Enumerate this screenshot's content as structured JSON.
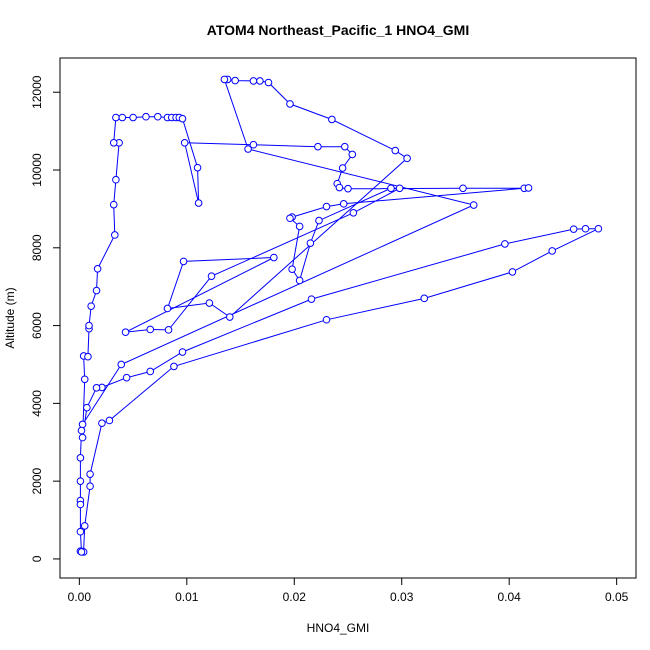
{
  "chart_data": {
    "type": "line",
    "title": "ATOM4 Northeast_Pacific_1 HNO4_GMI",
    "xlabel": "HNO4_GMI",
    "ylabel": "Altitude (m)",
    "xlim": [
      -0.0018,
      0.0518
    ],
    "ylim": [
      -490,
      12880
    ],
    "xticks": [
      {
        "value": 0,
        "label": "0.00"
      },
      0.01,
      0.02,
      0.03,
      0.04,
      0.05
    ],
    "yticks": [
      0,
      2000,
      4000,
      6000,
      8000,
      10000,
      12000
    ],
    "series": [
      {
        "color": "#0000ff",
        "x": [
          0.0003,
          0.0001,
          0.0004,
          0.0005,
          0.001,
          0.001,
          0.0021,
          0.0028,
          0.0088,
          0.023,
          0.0321,
          0.0403,
          0.044,
          0.0483,
          0.0471,
          0.046,
          0.0396,
          0.0216,
          0.0096,
          0.0066,
          0.0044,
          0.0021,
          0.0016,
          0.0007,
          0.0003,
          0.0005,
          0.0004,
          0.0008,
          0.0009,
          0.0009,
          0.0011,
          0.0016,
          0.0017,
          0.0033,
          0.0032,
          0.0034,
          0.0037,
          0.0032,
          0.0034,
          0.004,
          0.005,
          0.0062,
          0.0073,
          0.0082,
          0.0086,
          0.009,
          0.0093,
          0.0096,
          0.011,
          0.0111,
          0.0098,
          0.0162,
          0.0222,
          0.0247,
          0.0254,
          0.0245,
          0.024,
          0.0242,
          0.025,
          0.0357,
          0.0414,
          0.0418,
          0.0246,
          0.023,
          0.0198,
          0.0196,
          0.0205,
          0.0198,
          0.0205,
          0.0215,
          0.0223,
          0.029,
          0.0298,
          0.0255,
          0.0123,
          0.0083,
          0.0066,
          0.0043,
          0.0181,
          0.0097,
          0.0082,
          0.0121,
          0.014,
          0.0305,
          0.0294,
          0.0235,
          0.0196,
          0.0176,
          0.0168,
          0.0162,
          0.0145,
          0.0138,
          0.0135,
          0.0157,
          0.0367,
          0.0039,
          0.0003,
          0.0002,
          0.0001,
          0.0001,
          0.0001,
          0.0001,
          0.0001,
          0.0002
        ],
        "y": [
          190,
          200,
          180,
          850,
          1870,
          2180,
          3490,
          3560,
          4950,
          6150,
          6700,
          7380,
          7920,
          8490,
          8490,
          8480,
          8100,
          6680,
          5320,
          4820,
          4660,
          4410,
          4400,
          3890,
          3120,
          4620,
          5220,
          5200,
          5920,
          6000,
          6500,
          6900,
          7460,
          8330,
          9110,
          9750,
          10700,
          10700,
          11350,
          11350,
          11350,
          11370,
          11370,
          11350,
          11350,
          11350,
          11350,
          11320,
          10060,
          9150,
          10700,
          10650,
          10600,
          10600,
          10400,
          10050,
          9650,
          9550,
          9520,
          9530,
          9530,
          9540,
          9130,
          9060,
          8790,
          8760,
          8550,
          7450,
          7160,
          8120,
          8700,
          9530,
          9530,
          8900,
          7270,
          5890,
          5900,
          5830,
          7750,
          7650,
          6440,
          6580,
          6220,
          10300,
          10500,
          11300,
          11700,
          12250,
          12290,
          12290,
          12300,
          12330,
          12330,
          10540,
          9100,
          5000,
          3460,
          3300,
          2600,
          2000,
          1500,
          1400,
          700,
          180
        ]
      }
    ]
  }
}
